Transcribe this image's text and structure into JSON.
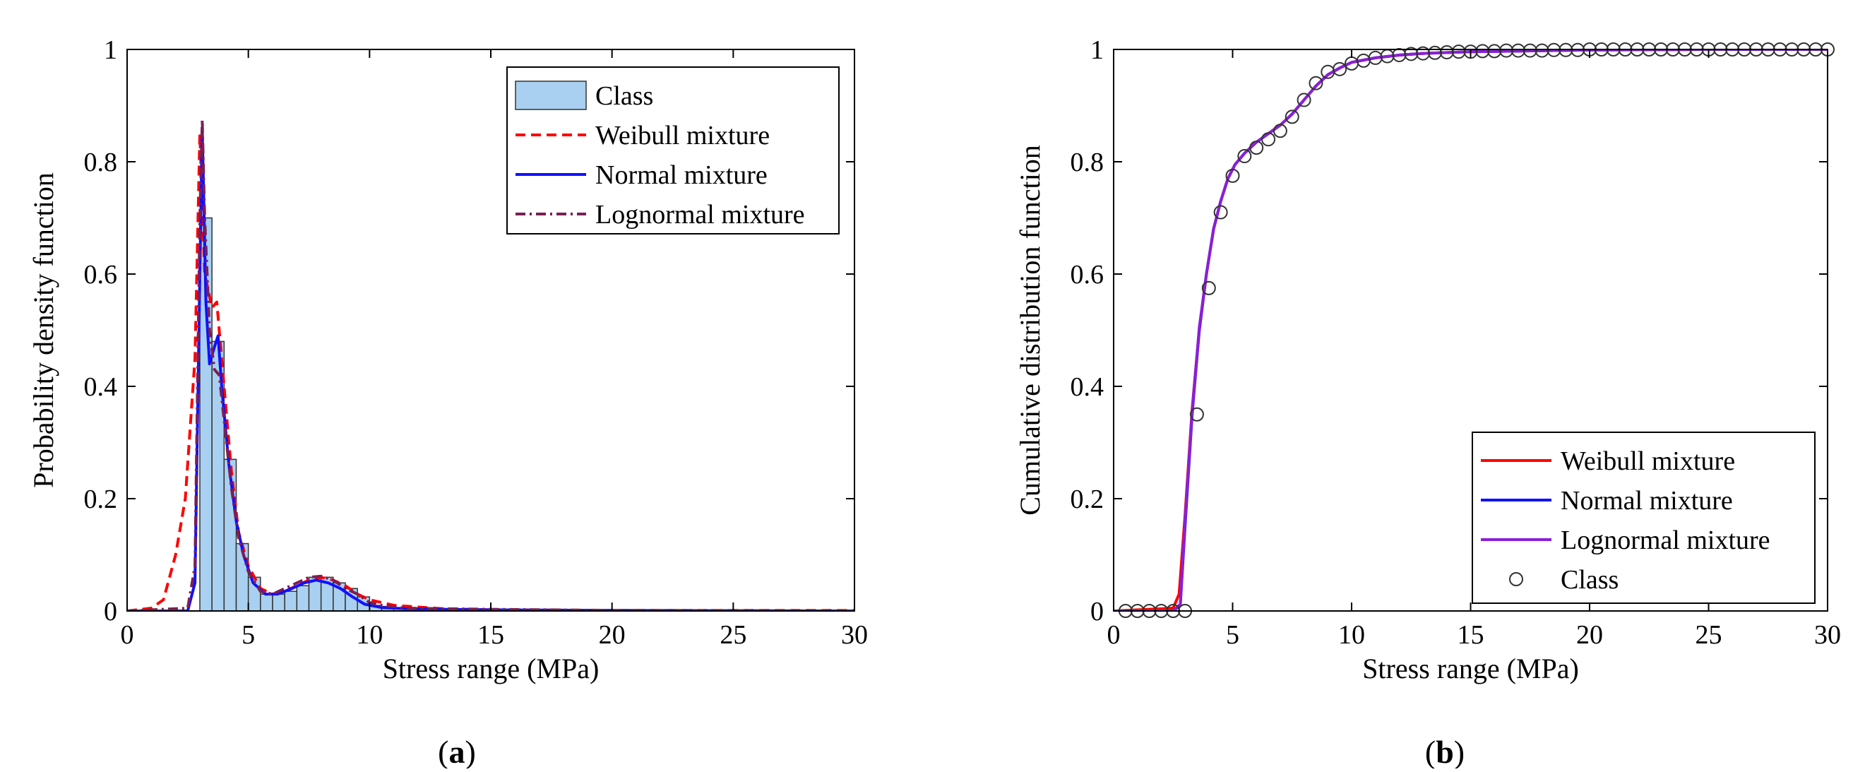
{
  "figure": {
    "panels": [
      {
        "open": "(",
        "letter": "a",
        "close": ")"
      },
      {
        "open": "(",
        "letter": "b",
        "close": ")"
      }
    ]
  },
  "chart_data": [
    {
      "type": "bar",
      "title": "",
      "xlabel": "Stress range (MPa)",
      "ylabel": "Probability density function",
      "xlim": [
        0,
        30
      ],
      "ylim": [
        0,
        1
      ],
      "xticks": [
        "0",
        "5",
        "10",
        "15",
        "20",
        "25",
        "30"
      ],
      "yticks": [
        "0",
        "0.2",
        "0.4",
        "0.6",
        "0.8",
        "1"
      ],
      "grid": false,
      "legend_position": "top-right",
      "bar_color": "#a9d0f0",
      "histogram": {
        "name": "Class",
        "bin_width": 0.5,
        "bin_start": [
          3.0,
          3.5,
          4.0,
          4.5,
          5.0,
          5.5,
          6.0,
          6.5,
          7.0,
          7.5,
          8.0,
          8.5,
          9.0,
          9.5,
          10.0,
          10.5,
          11.0,
          11.5,
          12.0,
          12.5
        ],
        "density": [
          0.7,
          0.48,
          0.27,
          0.12,
          0.06,
          0.03,
          0.03,
          0.035,
          0.045,
          0.06,
          0.06,
          0.05,
          0.04,
          0.025,
          0.01,
          0.008,
          0.006,
          0.005,
          0.004,
          0.003
        ]
      },
      "series": [
        {
          "name": "Weibull mixture",
          "style": "dashed",
          "color": "#ff0000",
          "x": [
            0,
            1,
            1.5,
            2,
            2.4,
            2.8,
            3.0,
            3.2,
            3.5,
            3.7,
            4.0,
            4.3,
            4.6,
            5.0,
            5.5,
            6.0,
            6.5,
            7.0,
            7.5,
            8.0,
            8.5,
            9.0,
            9.5,
            10.0,
            11.0,
            13.0,
            15.0,
            20.0,
            30.0
          ],
          "y": [
            0,
            0.005,
            0.02,
            0.1,
            0.2,
            0.45,
            0.85,
            0.6,
            0.54,
            0.55,
            0.4,
            0.25,
            0.14,
            0.08,
            0.04,
            0.03,
            0.035,
            0.045,
            0.055,
            0.06,
            0.055,
            0.045,
            0.03,
            0.02,
            0.01,
            0.004,
            0.002,
            0.001,
            0.001
          ]
        },
        {
          "name": "Normal mixture",
          "style": "solid",
          "color": "#1010ff",
          "x": [
            0,
            2.5,
            2.8,
            3.0,
            3.1,
            3.25,
            3.4,
            3.6,
            3.75,
            3.9,
            4.2,
            4.5,
            4.8,
            5.2,
            5.7,
            6.2,
            6.8,
            7.3,
            7.8,
            8.3,
            8.8,
            9.3,
            9.8,
            10.5,
            11.5,
            13.0,
            15.0,
            20.0,
            30.0
          ],
          "y": [
            0,
            0,
            0.05,
            0.6,
            0.86,
            0.55,
            0.44,
            0.47,
            0.49,
            0.4,
            0.26,
            0.16,
            0.1,
            0.05,
            0.03,
            0.03,
            0.04,
            0.05,
            0.055,
            0.05,
            0.04,
            0.025,
            0.012,
            0.006,
            0.004,
            0.003,
            0.002,
            0.001,
            0
          ]
        },
        {
          "name": "Lognormal mixture",
          "style": "dashdot",
          "color": "#7a1f55",
          "x": [
            0,
            2.5,
            2.8,
            3.0,
            3.1,
            3.2,
            3.4,
            3.6,
            3.8,
            4.0,
            4.3,
            4.6,
            5.0,
            5.5,
            6.0,
            6.5,
            7.0,
            7.5,
            8.0,
            8.5,
            9.0,
            9.5,
            10.0,
            10.5,
            11.5,
            13.0,
            15.0,
            20.0,
            30.0
          ],
          "y": [
            0,
            0.005,
            0.08,
            0.7,
            0.875,
            0.7,
            0.5,
            0.43,
            0.42,
            0.34,
            0.22,
            0.13,
            0.07,
            0.035,
            0.03,
            0.04,
            0.05,
            0.06,
            0.062,
            0.055,
            0.04,
            0.03,
            0.015,
            0.01,
            0.005,
            0.004,
            0.003,
            0.001,
            0
          ]
        }
      ]
    },
    {
      "type": "line",
      "title": "",
      "xlabel": "Stress range (MPa)",
      "ylabel": "Cumulative distribution function",
      "xlim": [
        0,
        30
      ],
      "ylim": [
        0,
        1
      ],
      "xticks": [
        "0",
        "5",
        "10",
        "15",
        "20",
        "25",
        "30"
      ],
      "yticks": [
        "0",
        "0.2",
        "0.4",
        "0.6",
        "0.8",
        "1"
      ],
      "grid": false,
      "legend_position": "bottom-right",
      "series": [
        {
          "name": "Weibull mixture",
          "style": "solid",
          "color": "#ff0000",
          "x": [
            0,
            2.5,
            2.75,
            3.0,
            3.3,
            3.6,
            3.9,
            4.2,
            4.5,
            4.8,
            5.1,
            5.5,
            6.0,
            6.5,
            7.0,
            7.5,
            8.0,
            8.5,
            9.0,
            9.5,
            10.0,
            11.0,
            12.0,
            13.0,
            15.0,
            20.0,
            25.0,
            30.0
          ],
          "y": [
            0,
            0.005,
            0.03,
            0.17,
            0.36,
            0.5,
            0.6,
            0.68,
            0.73,
            0.77,
            0.795,
            0.815,
            0.835,
            0.85,
            0.865,
            0.885,
            0.91,
            0.935,
            0.955,
            0.967,
            0.977,
            0.985,
            0.99,
            0.993,
            0.996,
            0.999,
            1.0,
            1.0
          ]
        },
        {
          "name": "Normal mixture",
          "style": "solid",
          "color": "#1010ff",
          "x": [
            0,
            2.5,
            2.8,
            3.0,
            3.3,
            3.6,
            3.9,
            4.2,
            4.5,
            4.8,
            5.1,
            5.5,
            6.0,
            6.5,
            7.0,
            7.5,
            8.0,
            8.5,
            9.0,
            9.5,
            10.0,
            11.0,
            12.0,
            13.0,
            15.0,
            20.0,
            25.0,
            30.0
          ],
          "y": [
            0,
            0,
            0.01,
            0.15,
            0.35,
            0.5,
            0.6,
            0.68,
            0.73,
            0.77,
            0.795,
            0.815,
            0.835,
            0.85,
            0.865,
            0.885,
            0.91,
            0.935,
            0.955,
            0.967,
            0.977,
            0.985,
            0.99,
            0.993,
            0.996,
            0.999,
            1.0,
            1.0
          ]
        },
        {
          "name": "Lognormal mixture",
          "style": "solid",
          "color": "#8b1fd6",
          "x": [
            0,
            2.5,
            2.8,
            3.0,
            3.3,
            3.6,
            3.9,
            4.2,
            4.5,
            4.8,
            5.1,
            5.5,
            6.0,
            6.5,
            7.0,
            7.5,
            8.0,
            8.5,
            9.0,
            9.5,
            10.0,
            11.0,
            12.0,
            13.0,
            15.0,
            20.0,
            25.0,
            30.0
          ],
          "y": [
            0,
            0,
            0.012,
            0.16,
            0.355,
            0.505,
            0.6,
            0.68,
            0.73,
            0.77,
            0.795,
            0.815,
            0.835,
            0.85,
            0.865,
            0.885,
            0.91,
            0.935,
            0.955,
            0.967,
            0.977,
            0.985,
            0.99,
            0.993,
            0.996,
            0.999,
            1.0,
            1.0
          ]
        }
      ],
      "markers": {
        "name": "Class",
        "symbol": "circle",
        "x": [
          0.5,
          1.0,
          1.5,
          2.0,
          2.5,
          3.0,
          3.5,
          4.0,
          4.5,
          5.0,
          5.5,
          6.0,
          6.5,
          7.0,
          7.5,
          8.0,
          8.5,
          9.0,
          9.5,
          10.0,
          10.5,
          11.0,
          11.5,
          12.0,
          12.5,
          13.0,
          13.5,
          14.0,
          14.5,
          15.0,
          15.5,
          16.0,
          16.5,
          17.0,
          17.5,
          18.0,
          18.5,
          19.0,
          19.5,
          20.0,
          20.5,
          21.0,
          21.5,
          22.0,
          22.5,
          23.0,
          23.5,
          24.0,
          24.5,
          25.0,
          25.5,
          26.0,
          26.5,
          27.0,
          27.5,
          28.0,
          28.5,
          29.0,
          29.5,
          30.0
        ],
        "y": [
          0,
          0,
          0,
          0,
          0,
          0,
          0.35,
          0.575,
          0.71,
          0.775,
          0.81,
          0.825,
          0.84,
          0.855,
          0.88,
          0.91,
          0.94,
          0.96,
          0.965,
          0.975,
          0.98,
          0.985,
          0.988,
          0.99,
          0.992,
          0.993,
          0.994,
          0.995,
          0.996,
          0.996,
          0.997,
          0.997,
          0.998,
          0.998,
          0.998,
          0.998,
          0.999,
          0.999,
          0.999,
          1,
          1,
          1,
          1,
          1,
          1,
          1,
          1,
          1,
          1,
          1,
          1,
          1,
          1,
          1,
          1,
          1,
          1,
          1,
          1,
          1
        ]
      }
    }
  ]
}
